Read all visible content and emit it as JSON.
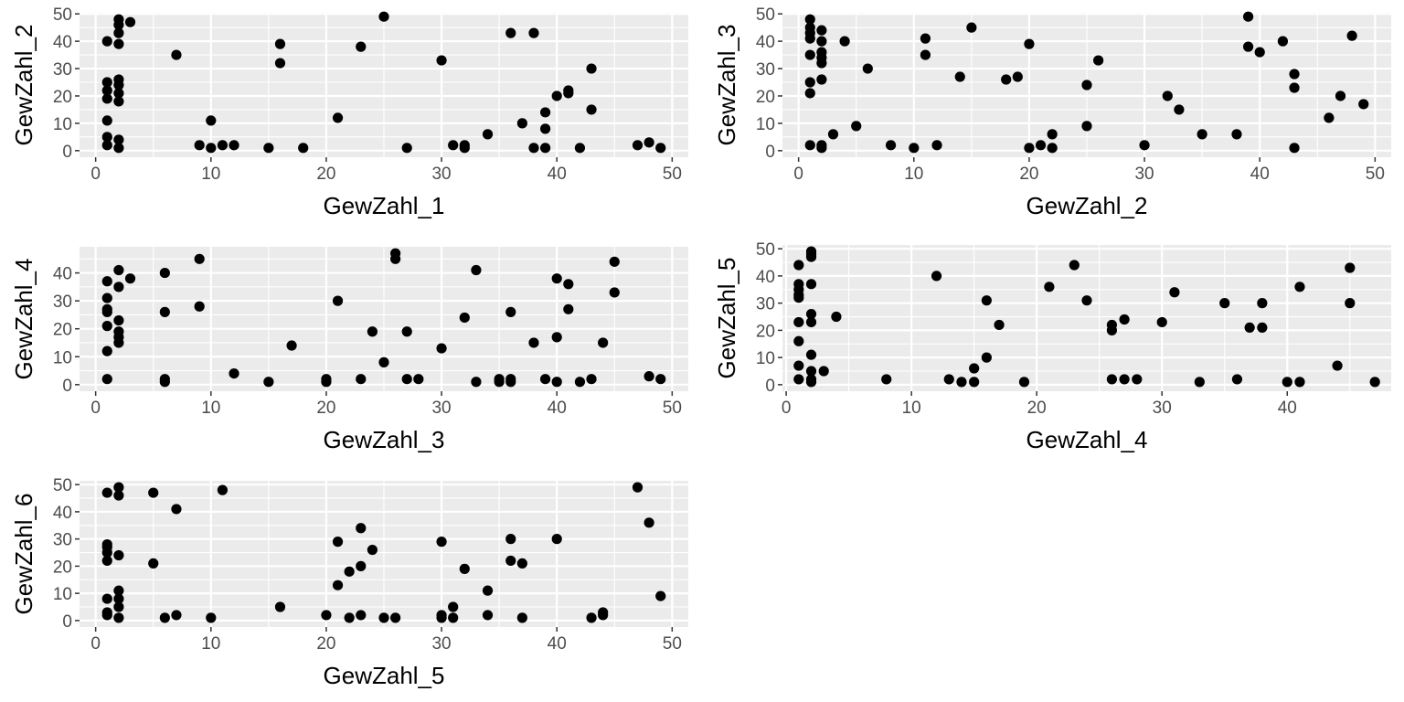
{
  "chart_data": [
    {
      "type": "scatter",
      "xlabel": "GewZahl_1",
      "ylabel": "GewZahl_2",
      "xlim": [
        -1.4,
        51.4
      ],
      "ylim": [
        -2.4,
        50.4
      ],
      "xticks": [
        0,
        10,
        20,
        30,
        40,
        50
      ],
      "yticks": [
        0,
        10,
        20,
        30,
        40,
        50
      ],
      "grid": true,
      "points": [
        [
          1,
          40
        ],
        [
          1,
          25
        ],
        [
          1,
          22
        ],
        [
          1,
          19
        ],
        [
          1,
          11
        ],
        [
          1,
          5
        ],
        [
          1,
          2
        ],
        [
          2,
          48
        ],
        [
          2,
          46
        ],
        [
          2,
          43
        ],
        [
          2,
          39
        ],
        [
          2,
          26
        ],
        [
          2,
          24
        ],
        [
          2,
          21
        ],
        [
          2,
          18
        ],
        [
          2,
          4
        ],
        [
          2,
          1
        ],
        [
          3,
          47
        ],
        [
          7,
          35
        ],
        [
          9,
          2
        ],
        [
          10,
          11
        ],
        [
          10,
          1
        ],
        [
          11,
          2
        ],
        [
          12,
          2
        ],
        [
          15,
          1
        ],
        [
          16,
          39
        ],
        [
          16,
          32
        ],
        [
          18,
          1
        ],
        [
          21,
          12
        ],
        [
          23,
          38
        ],
        [
          25,
          49
        ],
        [
          27,
          1
        ],
        [
          30,
          33
        ],
        [
          31,
          2
        ],
        [
          32,
          2
        ],
        [
          32,
          1
        ],
        [
          34,
          6
        ],
        [
          36,
          43
        ],
        [
          37,
          10
        ],
        [
          38,
          43
        ],
        [
          38,
          1
        ],
        [
          39,
          14
        ],
        [
          39,
          8
        ],
        [
          39,
          1
        ],
        [
          40,
          20
        ],
        [
          41,
          22
        ],
        [
          41,
          21
        ],
        [
          42,
          1
        ],
        [
          43,
          30
        ],
        [
          43,
          15
        ],
        [
          47,
          2
        ],
        [
          48,
          3
        ],
        [
          49,
          1
        ]
      ]
    },
    {
      "type": "scatter",
      "xlabel": "GewZahl_2",
      "ylabel": "GewZahl_3",
      "xlim": [
        -1.4,
        51.4
      ],
      "ylim": [
        -2.4,
        50.4
      ],
      "xticks": [
        0,
        10,
        20,
        30,
        40,
        50
      ],
      "yticks": [
        0,
        10,
        20,
        30,
        40,
        50
      ],
      "grid": true,
      "points": [
        [
          1,
          48
        ],
        [
          1,
          45
        ],
        [
          1,
          43
        ],
        [
          1,
          41
        ],
        [
          1,
          35
        ],
        [
          1,
          25
        ],
        [
          1,
          21
        ],
        [
          1,
          2
        ],
        [
          2,
          44
        ],
        [
          2,
          40
        ],
        [
          2,
          36
        ],
        [
          2,
          34
        ],
        [
          2,
          32
        ],
        [
          2,
          26
        ],
        [
          2,
          2
        ],
        [
          2,
          1
        ],
        [
          3,
          6
        ],
        [
          4,
          40
        ],
        [
          5,
          9
        ],
        [
          6,
          30
        ],
        [
          8,
          2
        ],
        [
          10,
          1
        ],
        [
          11,
          41
        ],
        [
          11,
          35
        ],
        [
          12,
          2
        ],
        [
          14,
          27
        ],
        [
          15,
          45
        ],
        [
          18,
          26
        ],
        [
          19,
          27
        ],
        [
          20,
          39
        ],
        [
          20,
          1
        ],
        [
          21,
          2
        ],
        [
          22,
          6
        ],
        [
          22,
          1
        ],
        [
          25,
          24
        ],
        [
          25,
          9
        ],
        [
          26,
          33
        ],
        [
          30,
          2
        ],
        [
          32,
          20
        ],
        [
          33,
          15
        ],
        [
          35,
          6
        ],
        [
          38,
          6
        ],
        [
          39,
          49
        ],
        [
          39,
          38
        ],
        [
          40,
          36
        ],
        [
          42,
          40
        ],
        [
          43,
          28
        ],
        [
          43,
          23
        ],
        [
          43,
          1
        ],
        [
          46,
          12
        ],
        [
          47,
          20
        ],
        [
          48,
          42
        ],
        [
          49,
          17
        ]
      ]
    },
    {
      "type": "scatter",
      "xlabel": "GewZahl_3",
      "ylabel": "GewZahl_4",
      "xlim": [
        -1.4,
        51.4
      ],
      "ylim": [
        -2.35,
        49.35
      ],
      "xticks": [
        0,
        10,
        20,
        30,
        40,
        50
      ],
      "yticks": [
        0,
        10,
        20,
        30,
        40
      ],
      "grid": true,
      "points": [
        [
          1,
          37
        ],
        [
          1,
          31
        ],
        [
          1,
          27
        ],
        [
          1,
          26
        ],
        [
          1,
          21
        ],
        [
          1,
          12
        ],
        [
          1,
          2
        ],
        [
          2,
          41
        ],
        [
          2,
          35
        ],
        [
          2,
          23
        ],
        [
          2,
          19
        ],
        [
          2,
          17
        ],
        [
          2,
          15
        ],
        [
          3,
          38
        ],
        [
          6,
          40
        ],
        [
          6,
          26
        ],
        [
          6,
          2
        ],
        [
          6,
          1
        ],
        [
          9,
          45
        ],
        [
          9,
          28
        ],
        [
          12,
          4
        ],
        [
          15,
          1
        ],
        [
          17,
          14
        ],
        [
          20,
          2
        ],
        [
          20,
          1
        ],
        [
          21,
          30
        ],
        [
          23,
          2
        ],
        [
          24,
          19
        ],
        [
          25,
          8
        ],
        [
          26,
          47
        ],
        [
          26,
          45
        ],
        [
          27,
          19
        ],
        [
          27,
          2
        ],
        [
          28,
          2
        ],
        [
          30,
          13
        ],
        [
          32,
          24
        ],
        [
          33,
          41
        ],
        [
          33,
          1
        ],
        [
          35,
          2
        ],
        [
          35,
          1
        ],
        [
          36,
          26
        ],
        [
          36,
          2
        ],
        [
          36,
          1
        ],
        [
          38,
          15
        ],
        [
          39,
          2
        ],
        [
          40,
          38
        ],
        [
          40,
          17
        ],
        [
          40,
          1
        ],
        [
          41,
          36
        ],
        [
          41,
          27
        ],
        [
          42,
          1
        ],
        [
          43,
          2
        ],
        [
          44,
          15
        ],
        [
          45,
          44
        ],
        [
          45,
          33
        ],
        [
          48,
          3
        ],
        [
          49,
          2
        ]
      ]
    },
    {
      "type": "scatter",
      "xlabel": "GewZahl_4",
      "ylabel": "GewZahl_5",
      "xlim": [
        -0.3,
        48.3
      ],
      "ylim": [
        -2.4,
        51.4
      ],
      "xticks": [
        0,
        10,
        20,
        30,
        40
      ],
      "yticks": [
        0,
        10,
        20,
        30,
        40,
        50
      ],
      "grid": true,
      "points": [
        [
          1,
          44
        ],
        [
          1,
          37
        ],
        [
          1,
          35
        ],
        [
          1,
          33
        ],
        [
          1,
          32
        ],
        [
          1,
          23
        ],
        [
          1,
          16
        ],
        [
          1,
          7
        ],
        [
          1,
          2
        ],
        [
          2,
          49
        ],
        [
          2,
          48
        ],
        [
          2,
          47
        ],
        [
          2,
          37
        ],
        [
          2,
          26
        ],
        [
          2,
          23
        ],
        [
          2,
          11
        ],
        [
          2,
          5
        ],
        [
          2,
          2
        ],
        [
          2,
          1
        ],
        [
          3,
          5
        ],
        [
          4,
          25
        ],
        [
          8,
          2
        ],
        [
          12,
          40
        ],
        [
          13,
          2
        ],
        [
          14,
          1
        ],
        [
          15,
          6
        ],
        [
          15,
          1
        ],
        [
          16,
          31
        ],
        [
          16,
          10
        ],
        [
          17,
          22
        ],
        [
          19,
          1
        ],
        [
          21,
          36
        ],
        [
          23,
          44
        ],
        [
          24,
          31
        ],
        [
          26,
          22
        ],
        [
          26,
          20
        ],
        [
          26,
          2
        ],
        [
          27,
          24
        ],
        [
          27,
          2
        ],
        [
          28,
          2
        ],
        [
          30,
          23
        ],
        [
          31,
          34
        ],
        [
          33,
          1
        ],
        [
          35,
          30
        ],
        [
          36,
          2
        ],
        [
          37,
          21
        ],
        [
          38,
          30
        ],
        [
          38,
          21
        ],
        [
          40,
          1
        ],
        [
          41,
          36
        ],
        [
          41,
          1
        ],
        [
          44,
          7
        ],
        [
          45,
          43
        ],
        [
          45,
          30
        ],
        [
          47,
          1
        ]
      ]
    },
    {
      "type": "scatter",
      "xlabel": "GewZahl_5",
      "ylabel": "GewZahl_6",
      "xlim": [
        -1.4,
        51.4
      ],
      "ylim": [
        -2.4,
        51.4
      ],
      "xticks": [
        0,
        10,
        20,
        30,
        40,
        50
      ],
      "yticks": [
        0,
        10,
        20,
        30,
        40,
        50
      ],
      "grid": true,
      "points": [
        [
          1,
          47
        ],
        [
          1,
          28
        ],
        [
          1,
          27
        ],
        [
          1,
          25
        ],
        [
          1,
          22
        ],
        [
          1,
          8
        ],
        [
          1,
          3
        ],
        [
          1,
          2
        ],
        [
          2,
          49
        ],
        [
          2,
          46
        ],
        [
          2,
          24
        ],
        [
          2,
          11
        ],
        [
          2,
          8
        ],
        [
          2,
          5
        ],
        [
          2,
          1
        ],
        [
          5,
          47
        ],
        [
          5,
          21
        ],
        [
          6,
          1
        ],
        [
          7,
          41
        ],
        [
          7,
          2
        ],
        [
          10,
          1
        ],
        [
          11,
          48
        ],
        [
          16,
          5
        ],
        [
          20,
          2
        ],
        [
          21,
          29
        ],
        [
          21,
          13
        ],
        [
          22,
          18
        ],
        [
          22,
          1
        ],
        [
          23,
          34
        ],
        [
          23,
          20
        ],
        [
          23,
          2
        ],
        [
          24,
          26
        ],
        [
          25,
          1
        ],
        [
          26,
          1
        ],
        [
          30,
          29
        ],
        [
          30,
          2
        ],
        [
          30,
          1
        ],
        [
          31,
          5
        ],
        [
          31,
          1
        ],
        [
          32,
          19
        ],
        [
          34,
          11
        ],
        [
          34,
          2
        ],
        [
          36,
          30
        ],
        [
          36,
          22
        ],
        [
          37,
          21
        ],
        [
          37,
          1
        ],
        [
          40,
          30
        ],
        [
          43,
          1
        ],
        [
          44,
          3
        ],
        [
          44,
          2
        ],
        [
          47,
          49
        ],
        [
          48,
          36
        ],
        [
          49,
          9
        ]
      ]
    }
  ]
}
